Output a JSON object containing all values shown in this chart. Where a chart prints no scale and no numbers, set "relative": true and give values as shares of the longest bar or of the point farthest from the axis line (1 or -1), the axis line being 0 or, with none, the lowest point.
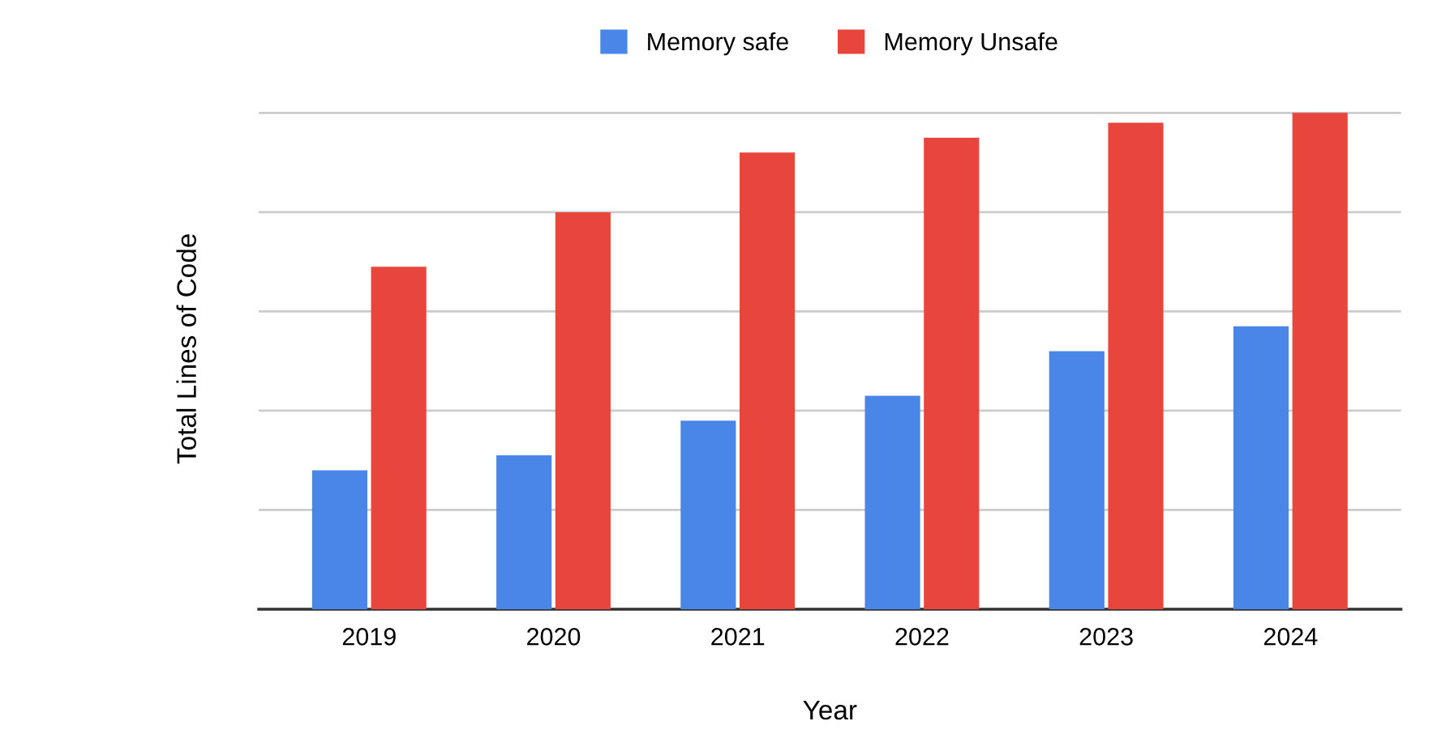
{
  "chart_data": {
    "type": "bar",
    "relative": true,
    "xlabel": "Year",
    "ylabel": "Total Lines of Code",
    "categories": [
      "2019",
      "2020",
      "2021",
      "2022",
      "2023",
      "2024"
    ],
    "series": [
      {
        "name": "Memory safe",
        "color": "#4a86e8",
        "values": [
          0.28,
          0.31,
          0.38,
          0.43,
          0.52,
          0.57
        ]
      },
      {
        "name": "Memory Unsafe",
        "color": "#e8453c",
        "values": [
          0.69,
          0.8,
          0.92,
          0.95,
          0.98,
          1
        ]
      }
    ],
    "grid": "y",
    "legend": "top"
  }
}
